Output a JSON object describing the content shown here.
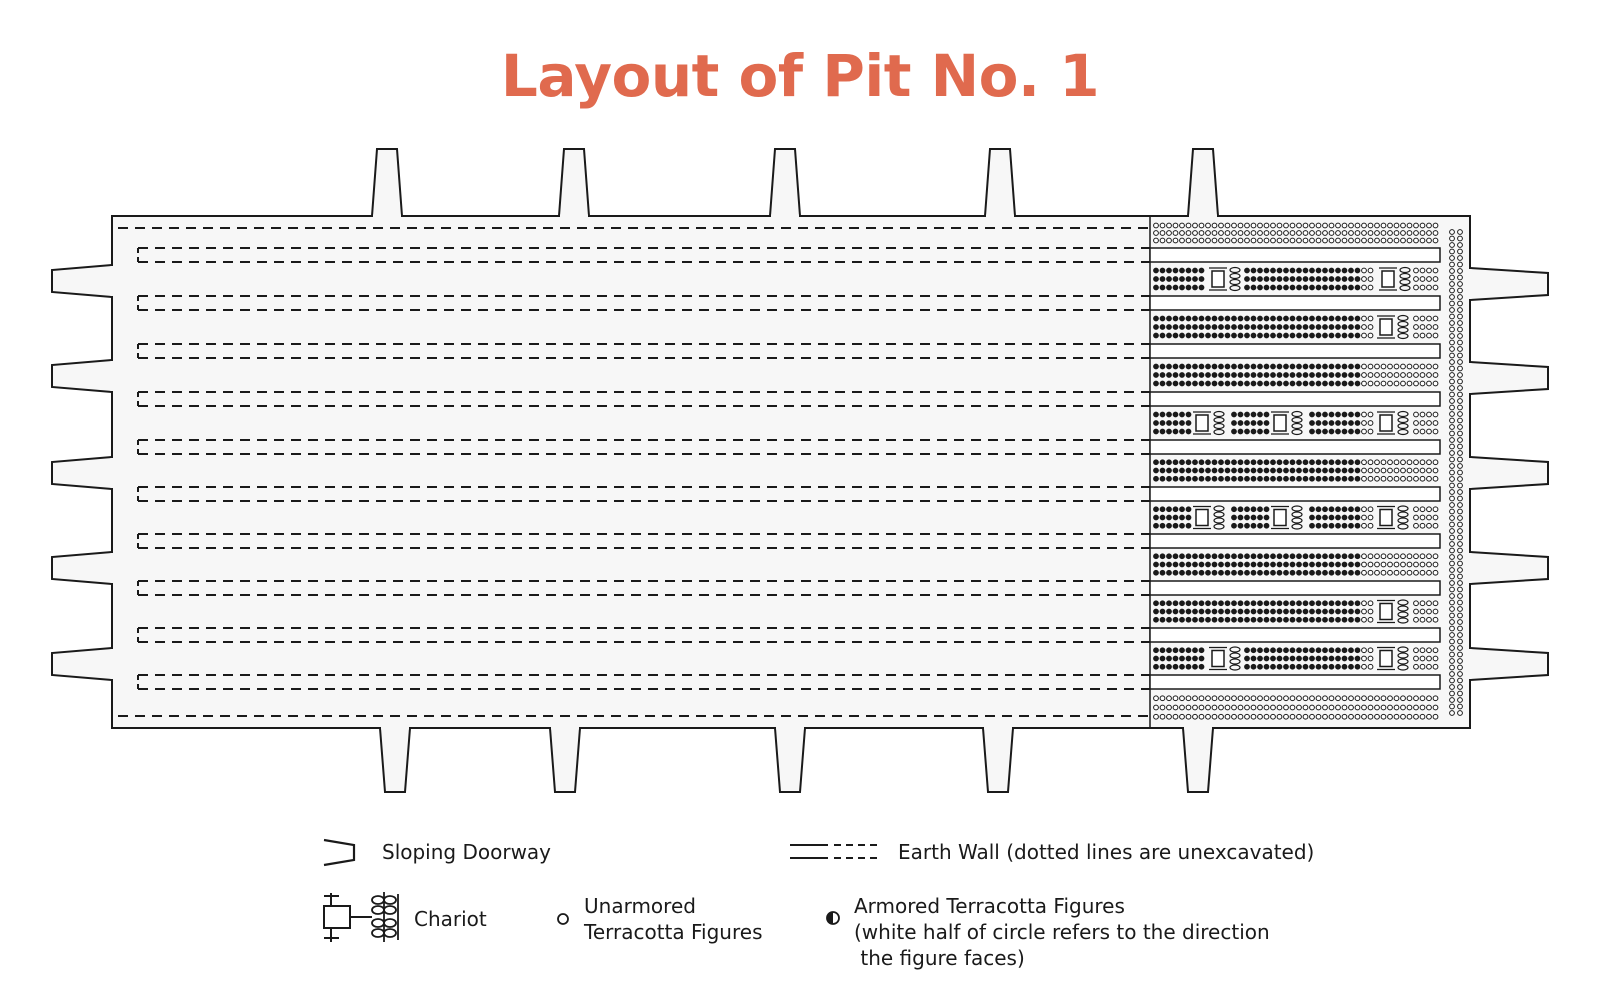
{
  "title": "Layout of Pit No. 1",
  "colors": {
    "title": "#E06A4E",
    "ink": "#1a1a1a",
    "paper": "#f7f7f7",
    "background": "#ffffff"
  },
  "legend": {
    "sloping_doorway": "Sloping Doorway",
    "earth_wall": "Earth Wall (dotted lines are unexcavated)",
    "chariot": "Chariot",
    "unarmored": [
      "Unarmored",
      "Terracotta Figures"
    ],
    "armored": [
      "Armored Terracotta Figures",
      "(white half of circle refers to the direction",
      " the figure faces)"
    ]
  },
  "icons": {
    "doorway": "doorway-icon",
    "earth_wall": "earth-wall-icon",
    "chariot": "chariot-icon",
    "unarmored": "open-circle-icon",
    "armored": "half-filled-circle-icon"
  }
}
